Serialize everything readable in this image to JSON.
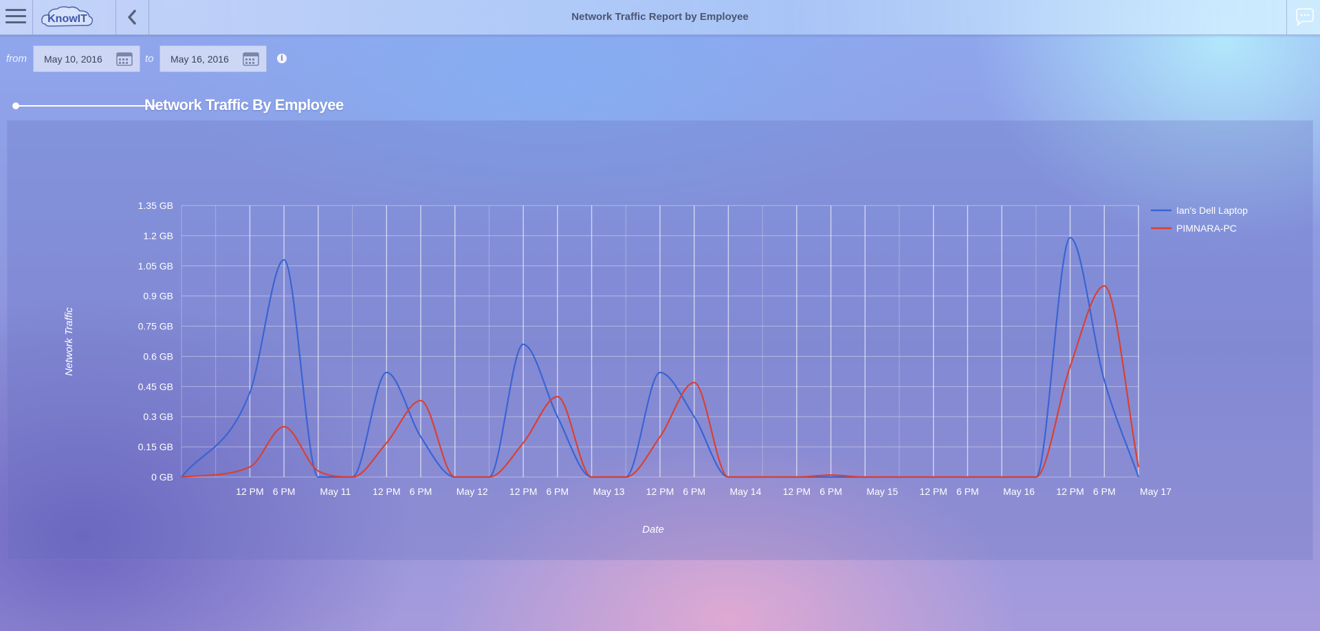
{
  "header": {
    "title": "Network Traffic Report by Employee",
    "logo_text": "KnowIT",
    "icons": {
      "menu": "hamburger-menu-icon",
      "back": "chevron-left-icon",
      "chat": "chat-bubble-icon"
    }
  },
  "filters": {
    "from_label": "from",
    "to_label": "to",
    "from_date": "May 10, 2016",
    "to_date": "May 16, 2016",
    "icons": {
      "calendar": "calendar-icon",
      "info": "info-icon"
    }
  },
  "section": {
    "title": "Network Traffic By Employee"
  },
  "colors": {
    "series1": "#3a63d3",
    "series2": "#d94031",
    "grid": "#cfd3e6",
    "text": "#ffffff"
  },
  "chart_data": {
    "type": "line",
    "title": "",
    "xlabel": "Date",
    "ylabel": "Network Traffic",
    "yticks": [
      "0 GB",
      "0.15 GB",
      "0.3 GB",
      "0.45 GB",
      "0.6 GB",
      "0.75 GB",
      "0.9 GB",
      "1.05 GB",
      "1.2 GB",
      "1.35 GB"
    ],
    "ylim": [
      0,
      1.35
    ],
    "xlim": [
      "May 10 00:00",
      "May 17 00:00"
    ],
    "xticks": [
      "12 PM",
      "6 PM",
      "May 11",
      "12 PM",
      "6 PM",
      "May 12",
      "12 PM",
      "6 PM",
      "May 13",
      "12 PM",
      "6 PM",
      "May 14",
      "12 PM",
      "6 PM",
      "May 15",
      "12 PM",
      "6 PM",
      "May 16",
      "12 PM",
      "6 PM",
      "May 17"
    ],
    "grid": true,
    "legend_position": "top-right",
    "series": [
      {
        "name": "Ian's Dell Laptop",
        "color": "#3a63d3",
        "points": [
          [
            "May 10 00:00",
            0
          ],
          [
            "May 10 12:00",
            0.42
          ],
          [
            "May 10 18:00",
            1.08
          ],
          [
            "May 11 00:00",
            0
          ],
          [
            "May 11 06:00",
            0
          ],
          [
            "May 11 12:00",
            0.52
          ],
          [
            "May 11 18:00",
            0.2
          ],
          [
            "May 12 00:00",
            0
          ],
          [
            "May 12 06:00",
            0
          ],
          [
            "May 12 12:00",
            0.66
          ],
          [
            "May 12 18:00",
            0.3
          ],
          [
            "May 13 00:00",
            0
          ],
          [
            "May 13 06:00",
            0
          ],
          [
            "May 13 12:00",
            0.52
          ],
          [
            "May 13 18:00",
            0.3
          ],
          [
            "May 14 00:00",
            0
          ],
          [
            "May 15 00:00",
            0
          ],
          [
            "May 16 00:00",
            0
          ],
          [
            "May 16 06:00",
            0
          ],
          [
            "May 16 12:00",
            1.19
          ],
          [
            "May 16 18:00",
            0.48
          ],
          [
            "May 17 00:00",
            0
          ]
        ]
      },
      {
        "name": "PIMNARA-PC",
        "color": "#d94031",
        "points": [
          [
            "May 10 00:00",
            0
          ],
          [
            "May 10 12:00",
            0.05
          ],
          [
            "May 10 18:00",
            0.25
          ],
          [
            "May 11 00:00",
            0.03
          ],
          [
            "May 11 06:00",
            0
          ],
          [
            "May 11 12:00",
            0.17
          ],
          [
            "May 11 18:00",
            0.38
          ],
          [
            "May 12 00:00",
            0
          ],
          [
            "May 12 06:00",
            0
          ],
          [
            "May 12 12:00",
            0.17
          ],
          [
            "May 12 18:00",
            0.4
          ],
          [
            "May 13 00:00",
            0
          ],
          [
            "May 13 06:00",
            0
          ],
          [
            "May 13 12:00",
            0.2
          ],
          [
            "May 13 18:00",
            0.47
          ],
          [
            "May 14 00:00",
            0
          ],
          [
            "May 14 12:00",
            0
          ],
          [
            "May 14 18:00",
            0.01
          ],
          [
            "May 15 00:00",
            0
          ],
          [
            "May 16 00:00",
            0
          ],
          [
            "May 16 06:00",
            0
          ],
          [
            "May 16 12:00",
            0.55
          ],
          [
            "May 16 18:00",
            0.95
          ],
          [
            "May 17 00:00",
            0.05
          ]
        ]
      }
    ]
  }
}
